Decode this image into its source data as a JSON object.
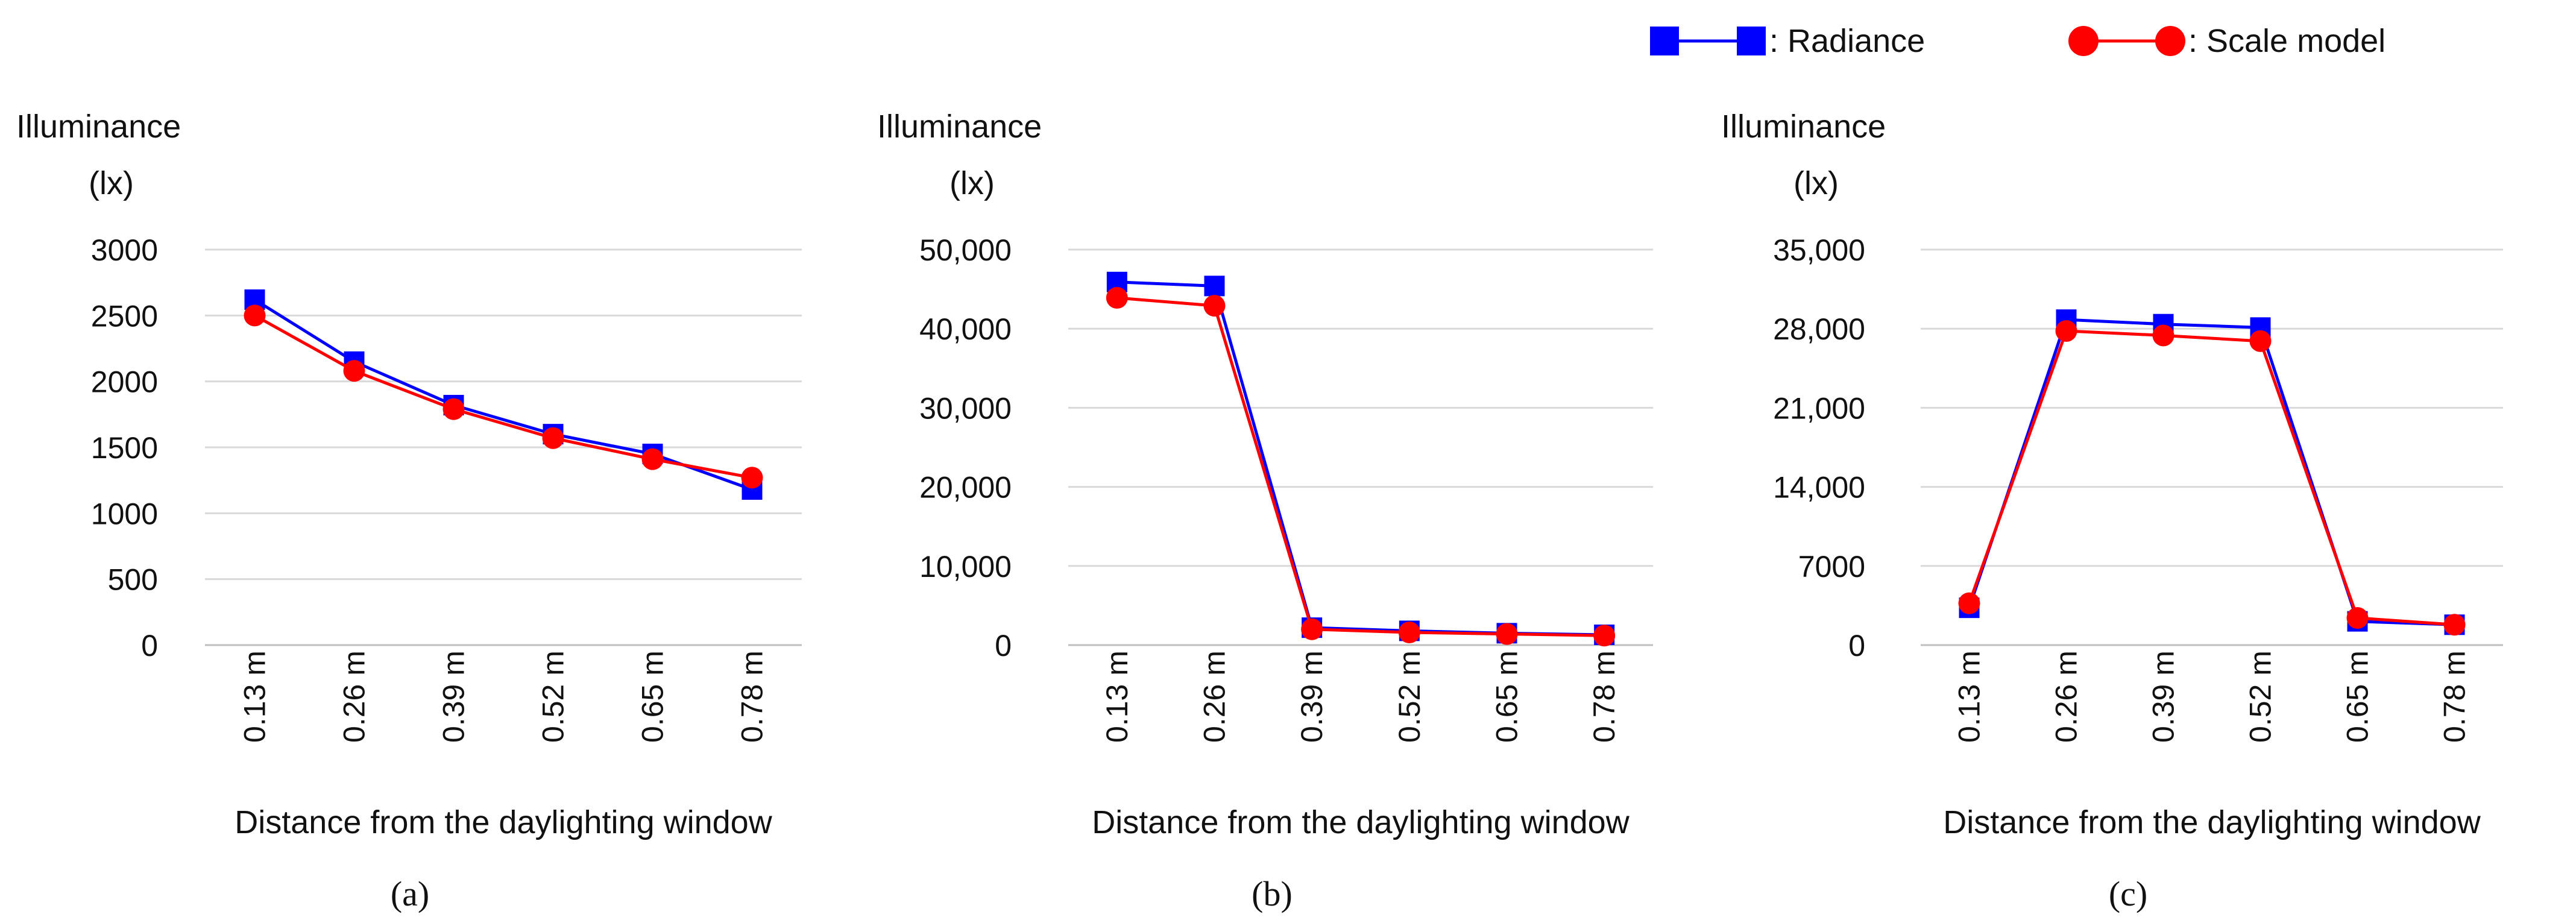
{
  "legend": {
    "items": [
      {
        "label": ": Radiance",
        "color": "#0000FF",
        "marker": "square"
      },
      {
        "label": ": Scale model",
        "color": "#FF0000",
        "marker": "circle"
      }
    ]
  },
  "chart_data": [
    {
      "panel_label": "(a)",
      "type": "line",
      "ylabel": "Illuminance\n(lx)",
      "xlabel": "Distance from the daylighting window",
      "categories": [
        "0.13 m",
        "0.26 m",
        "0.39 m",
        "0.52 m",
        "0.65 m",
        "0.78 m"
      ],
      "ylim": [
        0,
        3000
      ],
      "yticks": [
        0,
        500,
        1000,
        1500,
        2000,
        2500,
        3000
      ],
      "ytick_labels": [
        "0",
        "500",
        "1000",
        "1500",
        "2000",
        "2500",
        "3000"
      ],
      "grid": true,
      "series": [
        {
          "name": "Radiance",
          "color": "#0000FF",
          "marker": "square",
          "values": [
            2620,
            2150,
            1820,
            1600,
            1450,
            1180
          ]
        },
        {
          "name": "Scale model",
          "color": "#FF0000",
          "marker": "circle",
          "values": [
            2500,
            2080,
            1790,
            1570,
            1410,
            1270
          ]
        }
      ]
    },
    {
      "panel_label": "(b)",
      "type": "line",
      "ylabel": "Illuminance\n(lx)",
      "xlabel": "Distance from the daylighting window",
      "categories": [
        "0.13 m",
        "0.26 m",
        "0.39 m",
        "0.52 m",
        "0.65 m",
        "0.78 m"
      ],
      "ylim": [
        0,
        50000
      ],
      "yticks": [
        0,
        10000,
        20000,
        30000,
        40000,
        50000
      ],
      "ytick_labels": [
        "0",
        "10,000",
        "20,000",
        "30,000",
        "40,000",
        "50,000"
      ],
      "grid": true,
      "series": [
        {
          "name": "Radiance",
          "color": "#0000FF",
          "marker": "square",
          "values": [
            45900,
            45400,
            2200,
            1800,
            1500,
            1300
          ]
        },
        {
          "name": "Scale model",
          "color": "#FF0000",
          "marker": "circle",
          "values": [
            43900,
            42900,
            2000,
            1600,
            1400,
            1200
          ]
        }
      ]
    },
    {
      "panel_label": "(c)",
      "type": "line",
      "ylabel": "Illuminance\n(lx)",
      "xlabel": "Distance from the daylighting window",
      "categories": [
        "0.13 m",
        "0.26 m",
        "0.39 m",
        "0.52 m",
        "0.65 m",
        "0.78 m"
      ],
      "ylim": [
        0,
        35000
      ],
      "yticks": [
        0,
        7000,
        14000,
        21000,
        28000,
        35000
      ],
      "ytick_labels": [
        "0",
        "7000",
        "14,000",
        "21,000",
        "28,000",
        "35,000"
      ],
      "grid": true,
      "series": [
        {
          "name": "Radiance",
          "color": "#0000FF",
          "marker": "square",
          "values": [
            3300,
            28800,
            28400,
            28100,
            2100,
            1800
          ]
        },
        {
          "name": "Scale model",
          "color": "#FF0000",
          "marker": "circle",
          "values": [
            3700,
            27800,
            27400,
            26900,
            2400,
            1800
          ]
        }
      ]
    }
  ]
}
